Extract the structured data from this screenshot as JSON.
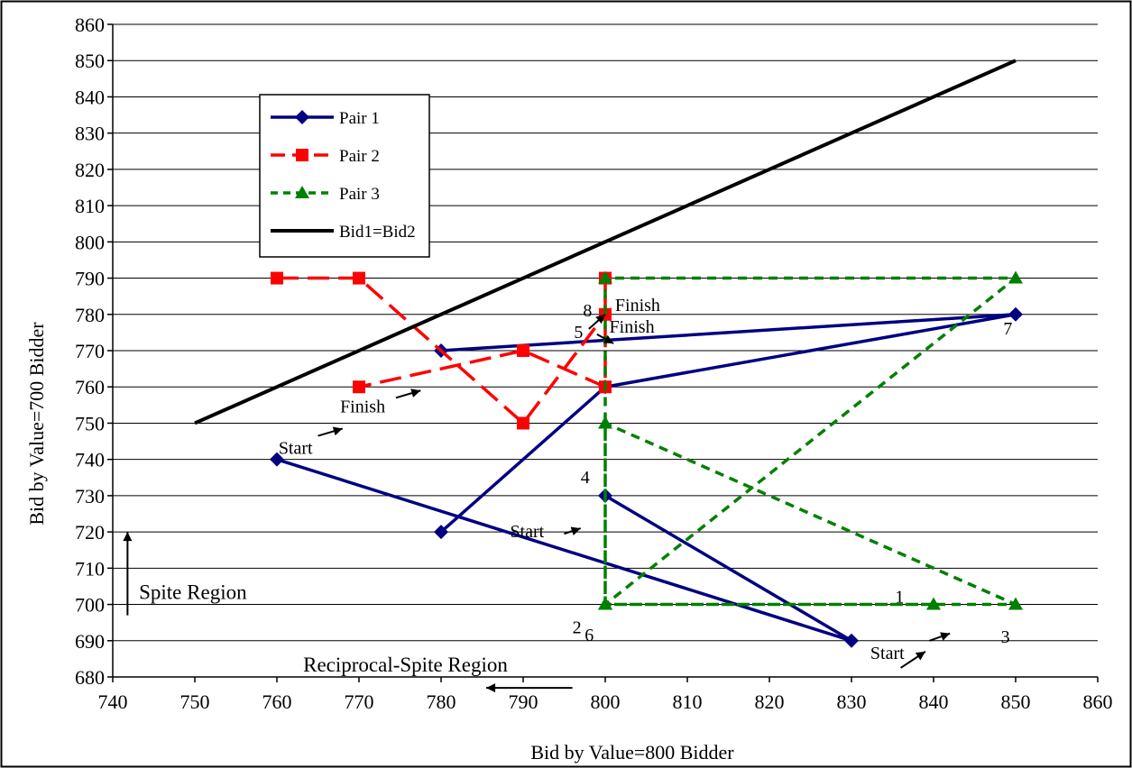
{
  "chart_data": {
    "type": "line",
    "title": "",
    "xlabel": "Bid by Value=800 Bidder",
    "ylabel": "Bid by Value=700 Bidder",
    "xlim": [
      740,
      860
    ],
    "ylim": [
      680,
      860
    ],
    "x_ticks": [
      740,
      750,
      760,
      770,
      780,
      790,
      800,
      810,
      820,
      830,
      840,
      850,
      860
    ],
    "y_ticks": [
      680,
      690,
      700,
      710,
      720,
      730,
      740,
      750,
      760,
      770,
      780,
      790,
      800,
      810,
      820,
      830,
      840,
      850,
      860
    ],
    "grid": "horizontal",
    "legend_position": "top-left",
    "series": [
      {
        "name": "Pair 1",
        "color": "#000080",
        "line_style": "solid",
        "marker": "diamond",
        "points": [
          [
            760,
            740
          ],
          [
            830,
            690
          ],
          [
            800,
            730
          ]
        ]
      },
      {
        "name": "Pair 1",
        "color": "#000080",
        "line_style": "solid",
        "marker": "diamond",
        "points": [
          [
            780,
            720
          ],
          [
            800,
            760
          ],
          [
            850,
            780
          ],
          [
            780,
            770
          ]
        ]
      },
      {
        "name": "Pair 2",
        "color": "#ff0000",
        "line_style": "dashed",
        "marker": "square",
        "points": [
          [
            760,
            790
          ],
          [
            770,
            790
          ],
          [
            790,
            750
          ],
          [
            800,
            780
          ],
          [
            800,
            790
          ],
          [
            800,
            760
          ],
          [
            790,
            770
          ],
          [
            770,
            760
          ]
        ]
      },
      {
        "name": "Pair 3",
        "color": "#008000",
        "line_style": "dotted",
        "marker": "triangle",
        "points": [
          [
            840,
            700
          ],
          [
            800,
            700
          ],
          [
            850,
            700
          ],
          [
            800,
            750
          ],
          [
            800,
            700
          ],
          [
            850,
            790
          ],
          [
            800,
            790
          ],
          [
            800,
            700
          ]
        ]
      },
      {
        "name": "Bid1=Bid2",
        "color": "#000000",
        "line_style": "solid",
        "marker": "none",
        "points": [
          [
            750,
            750
          ],
          [
            850,
            850
          ]
        ]
      }
    ],
    "legend": [
      {
        "label": "Pair 1",
        "color": "#000080",
        "line_style": "solid",
        "marker": "diamond"
      },
      {
        "label": "Pair 2",
        "color": "#ff0000",
        "line_style": "dashed",
        "marker": "square"
      },
      {
        "label": "Pair 3",
        "color": "#008000",
        "line_style": "dotted",
        "marker": "triangle"
      },
      {
        "label": "Bid1=Bid2",
        "color": "#000000",
        "line_style": "solid",
        "marker": "none"
      }
    ],
    "annotations": [
      {
        "text": "Start",
        "x": 760.2,
        "y": 741.5,
        "anchor": "start"
      },
      {
        "text": "Finish",
        "x": 767.7,
        "y": 753,
        "anchor": "start"
      },
      {
        "text": "Start",
        "x": 788.4,
        "y": 718.5,
        "anchor": "start"
      },
      {
        "text": "Start",
        "x": 832.3,
        "y": 685,
        "anchor": "start"
      },
      {
        "text": "Finish",
        "x": 801.2,
        "y": 781,
        "anchor": "start"
      },
      {
        "text": "Finish",
        "x": 800.5,
        "y": 775,
        "anchor": "start"
      },
      {
        "text": "8",
        "x": 797.3,
        "y": 779.5,
        "anchor": "start"
      },
      {
        "text": "5",
        "x": 796.2,
        "y": 773.5,
        "anchor": "start"
      },
      {
        "text": "4",
        "x": 797,
        "y": 733.5,
        "anchor": "start"
      },
      {
        "text": "7",
        "x": 848.5,
        "y": 774.5,
        "anchor": "start"
      },
      {
        "text": "1",
        "x": 835.3,
        "y": 700.5,
        "anchor": "start"
      },
      {
        "text": "3",
        "x": 848.2,
        "y": 689.5,
        "anchor": "start"
      },
      {
        "text": "2",
        "x": 796,
        "y": 692,
        "anchor": "start"
      },
      {
        "text": "6",
        "x": 797.5,
        "y": 690,
        "anchor": "start"
      }
    ],
    "arrows": [
      {
        "from": [
          765,
          746.5
        ],
        "to": [
          768,
          748.5
        ]
      },
      {
        "from": [
          774.5,
          757
        ],
        "to": [
          777.5,
          759
        ]
      },
      {
        "from": [
          795,
          719.5
        ],
        "to": [
          797,
          721
        ]
      },
      {
        "from": [
          836,
          682.5
        ],
        "to": [
          839,
          687
        ]
      },
      {
        "from": [
          839.5,
          690
        ],
        "to": [
          842,
          692
        ]
      },
      {
        "from": [
          798,
          776
        ],
        "to": [
          800,
          780
        ]
      },
      {
        "from": [
          799,
          774.5
        ],
        "to": [
          801,
          772
        ]
      }
    ],
    "regions": [
      {
        "text": "Spite Region",
        "x": 743.2,
        "y": 701.5,
        "arrow": "up"
      },
      {
        "text": "Reciprocal-Spite Region",
        "x": 763.2,
        "y": 681.5,
        "arrow": "left"
      }
    ]
  }
}
